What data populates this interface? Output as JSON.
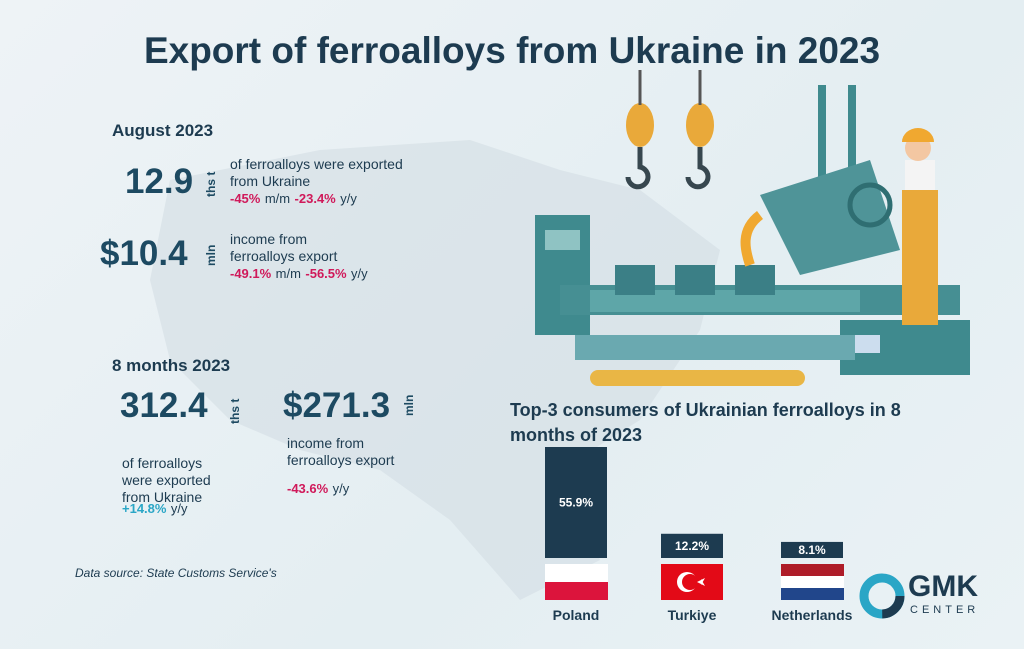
{
  "title": "Export of ferroalloys from Ukraine in 2023",
  "august": {
    "heading": "August 2023",
    "volume": {
      "value": "12.9",
      "unit": "ths t",
      "text": "of ferroalloys were exported from Ukraine",
      "changes": [
        {
          "value": "-45%",
          "period": "m/m"
        },
        {
          "value": "-23.4%",
          "period": "y/y"
        }
      ]
    },
    "income": {
      "value": "$10.4",
      "unit": "mln",
      "text": "income from ferroalloys export",
      "changes": [
        {
          "value": "-49.1%",
          "period": "m/m"
        },
        {
          "value": "-56.5%",
          "period": "y/y"
        }
      ]
    }
  },
  "eight_months": {
    "heading": "8 months 2023",
    "volume": {
      "value": "312.4",
      "unit": "ths t",
      "text": "of ferroalloys were exported from Ukraine",
      "changes": [
        {
          "value": "+14.8%",
          "period": "y/y"
        }
      ]
    },
    "income": {
      "value": "$271.3",
      "unit": "mln",
      "text": "income from ferroalloys export",
      "changes": [
        {
          "value": "-43.6%",
          "period": "y/y"
        }
      ]
    }
  },
  "source": "Data source: State Customs Service's",
  "chart_data": {
    "type": "bar",
    "title": "Top-3 consumers of Ukrainian ferroalloys in 8 months of 2023",
    "categories": [
      "Poland",
      "Turkiye",
      "Netherlands"
    ],
    "values": [
      55.9,
      12.2,
      8.1
    ],
    "value_labels": [
      "55.9%",
      "12.2%",
      "8.1%"
    ],
    "color": "#1d3b50"
  },
  "logo": {
    "name": "GMK",
    "sub": "CENTER"
  }
}
